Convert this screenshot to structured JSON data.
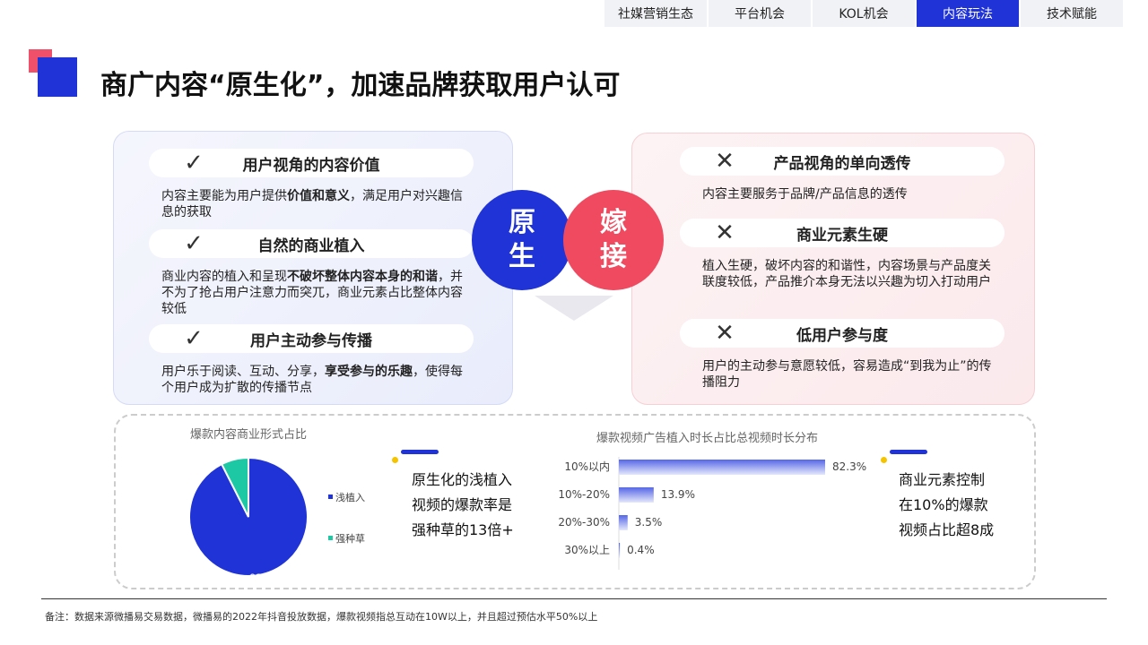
{
  "nav": {
    "tabs": [
      {
        "label": "社媒营销生态"
      },
      {
        "label": "平台机会"
      },
      {
        "label": "KOL机会"
      },
      {
        "label": "内容玩法",
        "active": true
      },
      {
        "label": "技术赋能"
      }
    ]
  },
  "title": "商广内容“原生化”，加速品牌获取用户认可",
  "left": {
    "items": [
      {
        "icon": "check-icon",
        "heading": "用户视角的内容价值",
        "pre": "内容主要能为用户提供",
        "bold": "价值和意义",
        "post": "，满足用户对兴趣信息的获取"
      },
      {
        "icon": "check-icon",
        "heading": "自然的商业植入",
        "pre": "商业内容的植入和呈现",
        "bold": "不破坏整体内容本身的和谐",
        "post": "，并不为了抢占用户注意力而突兀，商业元素占比整体内容较低"
      },
      {
        "icon": "check-icon",
        "heading": "用户主动参与传播",
        "pre": "用户乐于阅读、互动、分享，",
        "bold": "享受参与的乐趣",
        "post": "，使得每个用户成为扩散的传播节点"
      }
    ]
  },
  "right": {
    "items": [
      {
        "icon": "cross-icon",
        "heading": "产品视角的单向透传",
        "desc": "内容主要服务于品牌/产品信息的透传"
      },
      {
        "icon": "cross-icon",
        "heading": "商业元素生硬",
        "desc": "植入生硬，破坏内容的和谐性，内容场景与产品度关联度较低，产品推介本身无法以兴趣为切入打动用户"
      },
      {
        "icon": "cross-icon",
        "heading": "低用户参与度",
        "desc": "用户的主动参与意愿较低，容易造成“到我为止”的传播阻力"
      }
    ]
  },
  "circles": {
    "native": "原生",
    "graft": "嫁接",
    "native_color": "#1f33d6",
    "graft_color": "#ef4a60"
  },
  "insight1": "原生化的浅植入视频的爆款率是强种草的13倍+",
  "insight2": "商业元素控制在10%的爆款视频占比超8成",
  "chart_data": [
    {
      "type": "pie",
      "title": "爆款内容商业形式占比",
      "slices": [
        {
          "name": "浅植入",
          "value": 92.54,
          "label": "92.54%",
          "color": "#1f33d6"
        },
        {
          "name": "强种草",
          "value": 7.46,
          "label": "7.46%",
          "color": "#1dc9a4"
        }
      ],
      "legend": "right"
    },
    {
      "type": "bar",
      "orientation": "horizontal",
      "title": "爆款视频广告植入时长占比总视频时长分布",
      "categories": [
        "10%以内",
        "10%-20%",
        "20%-30%",
        "30%以上"
      ],
      "values": [
        82.3,
        13.9,
        3.5,
        0.4
      ],
      "labels": [
        "82.3%",
        "13.9%",
        "3.5%",
        "0.4%"
      ],
      "color": "#5a6be6"
    }
  ],
  "note": "备注：数据来源微播易交易数据，微播易的2022年抖音投放数据，爆款视频指总互动在10W以上，并且超过预估水平50%以上"
}
